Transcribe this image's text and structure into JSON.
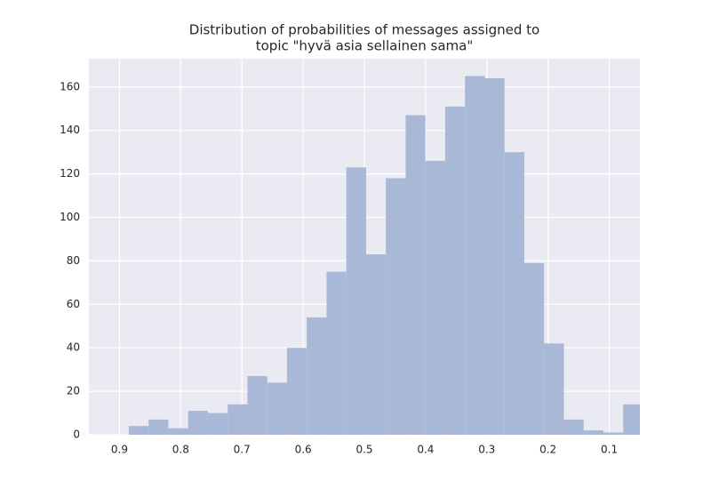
{
  "chart_data": {
    "type": "histogram",
    "title": [
      "Distribution of probabilities of messages assigned to",
      "topic \"hyvä asia sellainen sama\""
    ],
    "bins": [
      0.045,
      0.0773,
      0.1096,
      0.1419,
      0.1742,
      0.2065,
      0.2388,
      0.2711,
      0.3034,
      0.3357,
      0.368,
      0.4003,
      0.4326,
      0.4649,
      0.4972,
      0.5295,
      0.5618,
      0.5941,
      0.6264,
      0.6587,
      0.691,
      0.7233,
      0.7556,
      0.7879,
      0.8202,
      0.8525,
      0.8848
    ],
    "values": [
      14,
      1,
      2,
      7,
      42,
      79,
      130,
      164,
      165,
      151,
      126,
      147,
      118,
      83,
      123,
      75,
      54,
      40,
      24,
      27,
      14,
      10,
      11,
      3,
      7,
      4
    ],
    "color": "#a9b8d6",
    "xlim": [
      0.95,
      0.05
    ],
    "xticks": [
      0.9,
      0.8,
      0.7,
      0.6,
      0.5,
      0.4,
      0.3,
      0.2,
      0.1
    ],
    "ylim": [
      0,
      173
    ],
    "yticks": [
      0,
      20,
      40,
      60,
      80,
      100,
      120,
      140,
      160
    ],
    "grid": true
  }
}
